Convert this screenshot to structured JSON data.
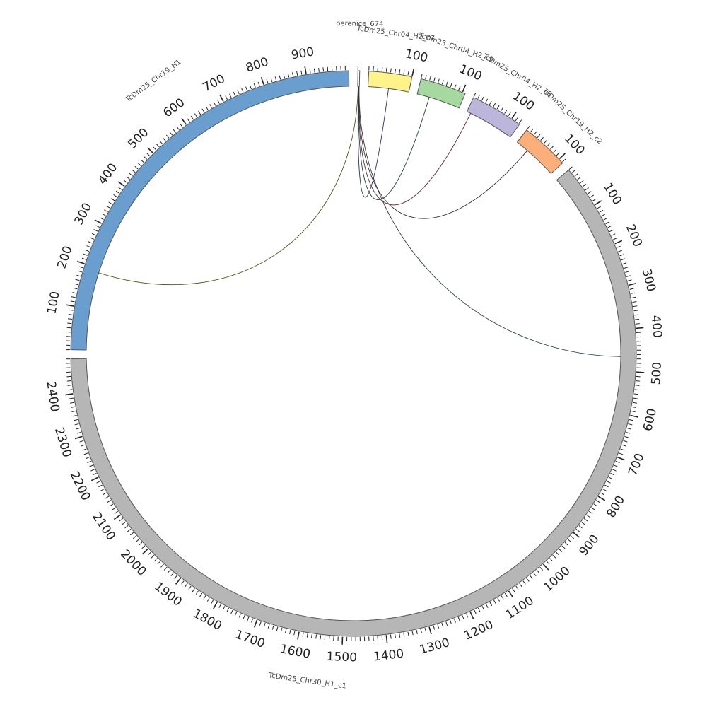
{
  "diagram": {
    "type": "circos",
    "segments": [
      {
        "name": "berenice_674",
        "length": 4,
        "color": "#ffffff",
        "label_ticks": []
      },
      {
        "name": "TcDm25_Chr04_H2_c7",
        "length": 100,
        "color": "#fff38a",
        "label_ticks": [
          100
        ]
      },
      {
        "name": "TcDm25_Chr04_H2_c9",
        "length": 107,
        "color": "#a6d9a0",
        "label_ticks": [
          100
        ]
      },
      {
        "name": "TcDm25_Chr04_H2_c8",
        "length": 122,
        "color": "#bcb6da",
        "label_ticks": [
          100
        ]
      },
      {
        "name": "TcDm25_Chr19_H2_c2",
        "length": 112,
        "color": "#fdae79",
        "label_ticks": [
          100
        ]
      },
      {
        "name": "TcDm25_Chr30_H1_c1",
        "length": 2480,
        "color": "#b6b6b6",
        "label_ticks": [
          100,
          200,
          300,
          400,
          500,
          600,
          700,
          800,
          900,
          1000,
          1100,
          1200,
          1300,
          1400,
          1500,
          1600,
          1700,
          1800,
          1900,
          2000,
          2100,
          2200,
          2300,
          2400
        ]
      },
      {
        "name": "TcDm25_Chr19_H1",
        "length": 998,
        "color": "#6a9ecf",
        "label_ticks": [
          100,
          200,
          300,
          400,
          500,
          600,
          700,
          800,
          900
        ]
      }
    ],
    "links": [
      {
        "source": "berenice_674",
        "source_pos": 1,
        "target": "TcDm25_Chr19_H1",
        "target_pos": 190,
        "color": "#4a5a1a"
      },
      {
        "source": "berenice_674",
        "source_pos": 1.5,
        "target": "TcDm25_Chr04_H2_c7",
        "target_pos": 50,
        "color": "#3a2a5a"
      },
      {
        "source": "berenice_674",
        "source_pos": 2,
        "target": "TcDm25_Chr04_H2_c9",
        "target_pos": 30,
        "color": "#1a4a2a"
      },
      {
        "source": "berenice_674",
        "source_pos": 2.5,
        "target": "TcDm25_Chr04_H2_c8",
        "target_pos": 10,
        "color": "#5a2a3a"
      },
      {
        "source": "berenice_674",
        "source_pos": 3,
        "target": "TcDm25_Chr19_H2_c2",
        "target_pos": 32,
        "color": "#3a2a2a"
      },
      {
        "source": "berenice_674",
        "source_pos": 3.5,
        "target": "TcDm25_Chr30_H1_c1",
        "target_pos": 465,
        "color": "#2a3a4a"
      }
    ]
  }
}
